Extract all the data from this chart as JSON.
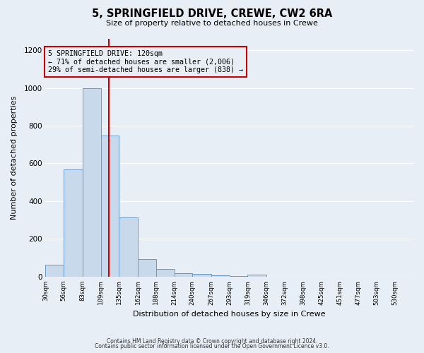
{
  "title": "5, SPRINGFIELD DRIVE, CREWE, CW2 6RA",
  "subtitle": "Size of property relative to detached houses in Crewe",
  "xlabel": "Distribution of detached houses by size in Crewe",
  "ylabel": "Number of detached properties",
  "bar_edges": [
    30,
    56,
    83,
    109,
    135,
    162,
    188,
    214,
    240,
    267,
    293,
    319,
    346,
    372,
    398,
    425,
    451,
    477,
    503,
    530,
    556
  ],
  "bar_heights": [
    65,
    570,
    1000,
    748,
    315,
    95,
    40,
    20,
    15,
    8,
    5,
    10,
    0,
    0,
    0,
    0,
    0,
    0,
    0,
    0
  ],
  "bar_color": "#c9d9ec",
  "bar_edge_color": "#6699cc",
  "property_size": 120,
  "vline_color": "#cc0000",
  "annotation_box_edge": "#cc0000",
  "annotation_lines": [
    "5 SPRINGFIELD DRIVE: 120sqm",
    "← 71% of detached houses are smaller (2,006)",
    "29% of semi-detached houses are larger (838) →"
  ],
  "ylim": [
    0,
    1260
  ],
  "yticks": [
    0,
    200,
    400,
    600,
    800,
    1000,
    1200
  ],
  "bg_color": "#e8eef5",
  "grid_color": "#ffffff",
  "footer_lines": [
    "Contains HM Land Registry data © Crown copyright and database right 2024.",
    "Contains public sector information licensed under the Open Government Licence v3.0."
  ]
}
